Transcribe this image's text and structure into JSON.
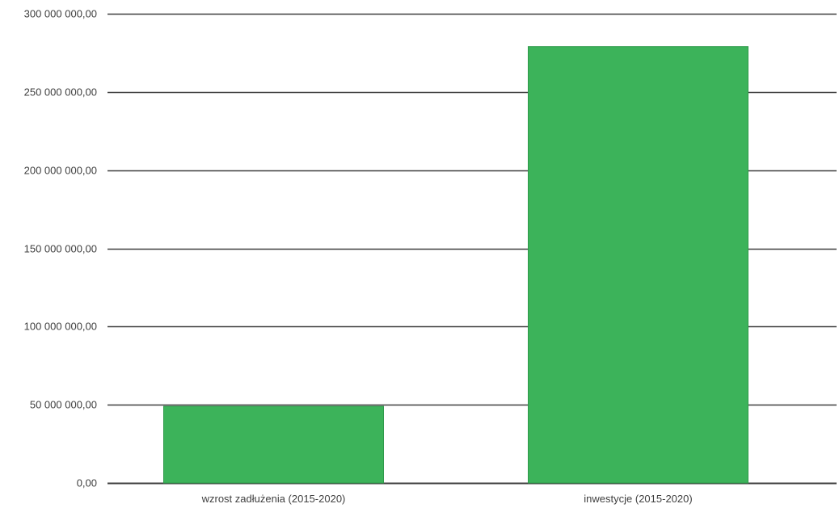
{
  "chart_data": {
    "type": "bar",
    "categories": [
      "wzrost zadłużenia (2015-2020)",
      "inwestycje (2015-2020)"
    ],
    "values": [
      49000000,
      279000000
    ],
    "title": "",
    "xlabel": "",
    "ylabel": "",
    "ylim": [
      0,
      300000000
    ],
    "yticks": [
      0,
      50000000,
      100000000,
      150000000,
      200000000,
      250000000,
      300000000
    ],
    "ytick_labels": [
      "0,00",
      "50 000 000,00",
      "100 000 000,00",
      "150 000 000,00",
      "200 000 000,00",
      "250 000 000,00",
      "300 000 000,00"
    ],
    "grid": true,
    "legend": "none",
    "colors": {
      "bar": "#3cb35a",
      "bar_edge": "#2e9a4a",
      "grid": "#3f3f3f",
      "text": "#404040"
    }
  }
}
